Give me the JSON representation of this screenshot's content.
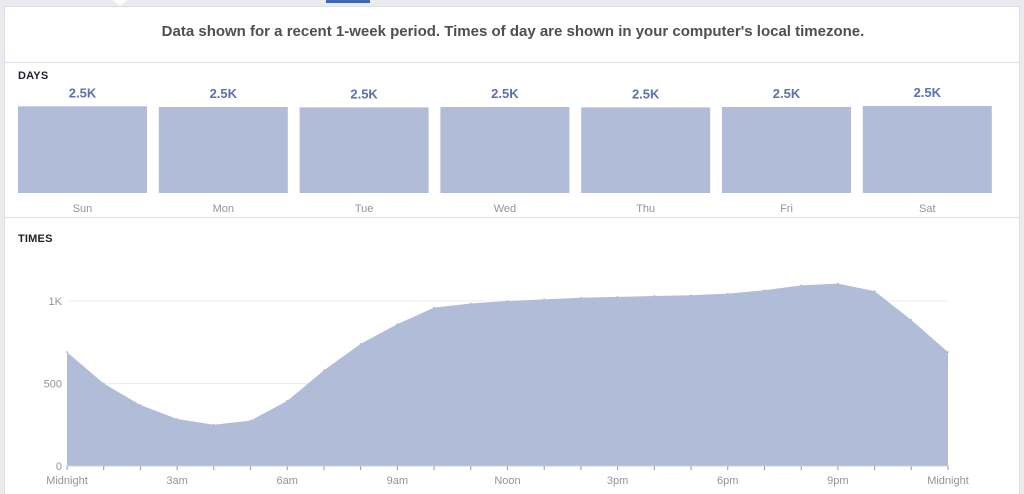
{
  "header": {
    "note": "Data shown for a recent 1-week period. Times of day are shown in your computer's local timezone."
  },
  "days_section": {
    "title": "DAYS"
  },
  "times_section": {
    "title": "TIMES"
  },
  "colors": {
    "fill": "#b1bcd8",
    "label": "#5b72ab",
    "axis": "#90949c",
    "grid": "#eceef1"
  },
  "chart_data": [
    {
      "type": "bar",
      "categories": [
        "Sun",
        "Mon",
        "Tue",
        "Wed",
        "Thu",
        "Fri",
        "Sat"
      ],
      "values": [
        2500,
        2480,
        2470,
        2480,
        2470,
        2480,
        2510
      ],
      "data_labels": [
        "2.5K",
        "2.5K",
        "2.5K",
        "2.5K",
        "2.5K",
        "2.5K",
        "2.5K"
      ]
    },
    {
      "type": "area",
      "x_labels": [
        "Midnight",
        "3am",
        "6am",
        "9am",
        "Noon",
        "3pm",
        "6pm",
        "9pm",
        "Midnight"
      ],
      "x_hours": [
        0,
        1,
        2,
        3,
        4,
        5,
        6,
        7,
        8,
        9,
        10,
        11,
        12,
        13,
        14,
        15,
        16,
        17,
        18,
        19,
        20,
        21,
        22,
        23,
        24
      ],
      "values": [
        690,
        500,
        370,
        285,
        250,
        275,
        395,
        580,
        740,
        860,
        960,
        985,
        1000,
        1010,
        1020,
        1025,
        1030,
        1035,
        1045,
        1065,
        1095,
        1105,
        1060,
        885,
        690
      ],
      "y_ticks": [
        0,
        500,
        1000
      ],
      "y_tick_labels": [
        "0",
        "500",
        "1K"
      ],
      "ylim": [
        0,
        1250
      ]
    }
  ]
}
